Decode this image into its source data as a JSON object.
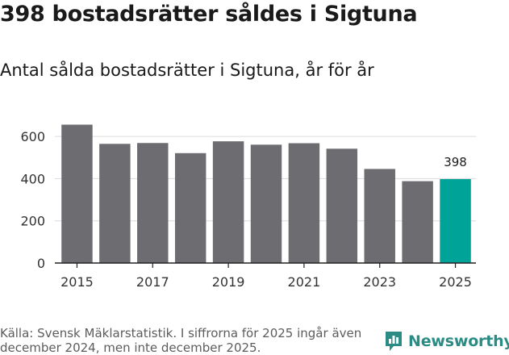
{
  "title": "398 bostadsrätter såldes i Sigtuna",
  "subtitle": "Antal sålda bostadsrätter i Sigtuna, år för år",
  "footer": {
    "source": "Källa: Svensk Mäklarstatistik. I siffrorna för 2025 ingår även december 2024, men inte december 2025.",
    "brand": "Newsworthy"
  },
  "colors": {
    "bar": "#6d6c70",
    "highlight": "#00a398",
    "grid": "#dcdcdc",
    "brand": "#2a8c84"
  },
  "icons": {
    "brand_icon": "newsworthy-logo-icon"
  },
  "chart_data": {
    "type": "bar",
    "categories": [
      "2015",
      "2016",
      "2017",
      "2018",
      "2019",
      "2020",
      "2021",
      "2022",
      "2023",
      "2024",
      "2025"
    ],
    "values": [
      656,
      565,
      569,
      521,
      577,
      561,
      568,
      542,
      446,
      388,
      398
    ],
    "highlight_index": 10,
    "data_labels": [
      {
        "index": 10,
        "text": "398"
      }
    ],
    "x_tick_labels": [
      "2015",
      "2017",
      "2019",
      "2021",
      "2023",
      "2025"
    ],
    "y_ticks": [
      0,
      200,
      400,
      600
    ],
    "ylim": [
      0,
      700
    ],
    "grid": true,
    "xlabel": "",
    "ylabel": ""
  }
}
